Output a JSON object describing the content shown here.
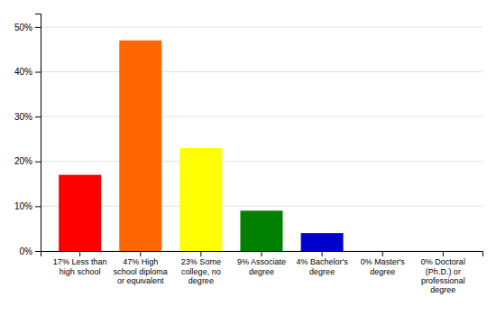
{
  "chart_data": {
    "type": "bar",
    "categories": [
      "17% Less than\nhigh school",
      "47% High\nschool diploma\nor equivalent",
      "23% Some\ncollege, no\ndegree",
      "9% Associate\ndegree",
      "4% Bachelor's\ndegree",
      "0% Master's\ndegree",
      "0% Doctoral\n(Ph.D.) or\nprofessional\ndegree"
    ],
    "values": [
      17,
      47,
      23,
      9,
      4,
      0,
      0
    ],
    "colors": [
      "#FF0000",
      "#FF6600",
      "#FFFF00",
      "#008000",
      "#0000CC",
      "#9900CC",
      "#FF00FF"
    ],
    "ylim": [
      0,
      53
    ],
    "yticks": [
      {
        "value": 0,
        "label": "0%"
      },
      {
        "value": 10,
        "label": "10%"
      },
      {
        "value": 20,
        "label": "20%"
      },
      {
        "value": 30,
        "label": "30%"
      },
      {
        "value": 40,
        "label": "40%"
      },
      {
        "value": 50,
        "label": "50%"
      }
    ],
    "grid": true
  }
}
